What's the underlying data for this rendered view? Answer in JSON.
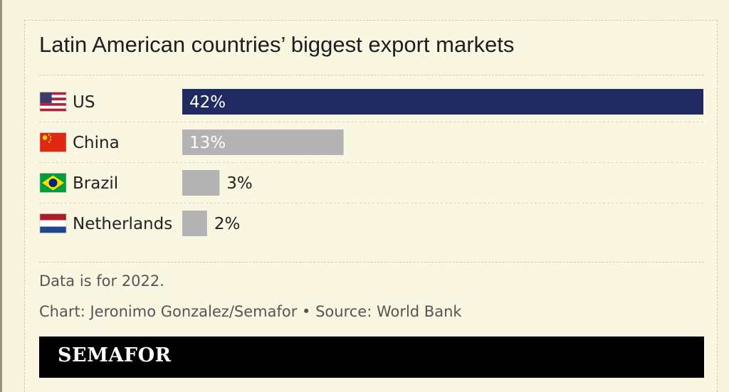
{
  "chart_data": {
    "type": "bar",
    "orientation": "horizontal",
    "title": "Latin American countries’ biggest export markets",
    "categories": [
      "US",
      "China",
      "Brazil",
      "Netherlands"
    ],
    "values": [
      42,
      13,
      3,
      2
    ],
    "value_labels": [
      "42%",
      "13%",
      "3%",
      "2%"
    ],
    "flags": [
      "us-flag-icon",
      "china-flag-icon",
      "brazil-flag-icon",
      "netherlands-flag-icon"
    ],
    "xlim": [
      0,
      42
    ],
    "grid": false,
    "legend": "none",
    "colors": {
      "highlight": "#1f2a63",
      "default": "#b3b3b3",
      "label_inside": "#ffffff",
      "label_outside": "#222222"
    }
  },
  "footer": {
    "note": "Data is for 2022.",
    "credit": "Chart: Jeronimo Gonzalez/Semafor • Source: World Bank",
    "logo": "SEMAFOR"
  }
}
